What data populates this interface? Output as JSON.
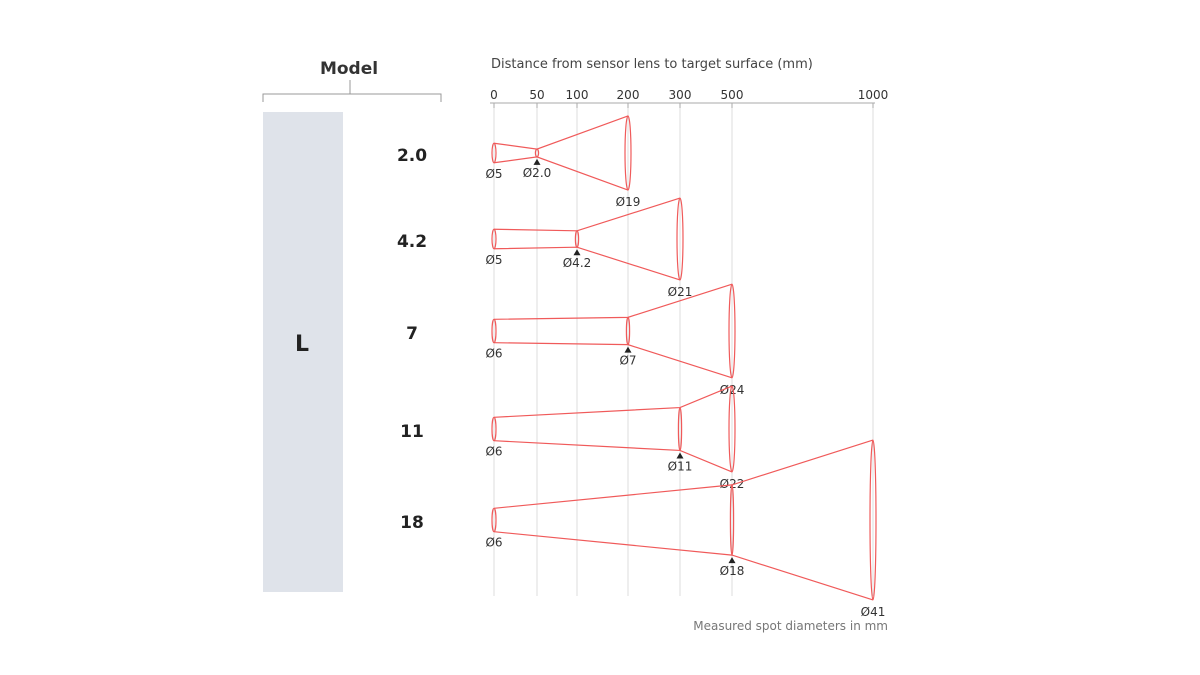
{
  "header": {
    "model_label": "Model",
    "axis_title": "Distance from sensor lens to target surface (mm)"
  },
  "footer": {
    "caption": "Measured spot diameters in mm"
  },
  "series_label": "L",
  "colors": {
    "beam": "#f05a5a",
    "grid": "#dddddd",
    "axis": "#aaaaaa",
    "text": "#333333",
    "series_bar": "#dfe3ea",
    "marker": "#222222"
  },
  "axis_ticks": [
    "0",
    "50",
    "100",
    "200",
    "300",
    "500",
    "1000"
  ],
  "axis_tick_values": [
    0,
    50,
    100,
    200,
    300,
    500,
    1000
  ],
  "chart_data": {
    "type": "diagram",
    "title": "Distance from sensor lens to target surface (mm)",
    "unit": "mm",
    "series_group": "L",
    "models": [
      {
        "name": "2.0",
        "lens_diameter": 5,
        "lens_label": "Ø5",
        "focus_distance": 50,
        "focus_diameter": 2.0,
        "focus_label": "Ø2.0",
        "end_distance": 200,
        "end_diameter": 19,
        "end_label": "Ø19"
      },
      {
        "name": "4.2",
        "lens_diameter": 5,
        "lens_label": "Ø5",
        "focus_distance": 100,
        "focus_diameter": 4.2,
        "focus_label": "Ø4.2",
        "end_distance": 300,
        "end_diameter": 21,
        "end_label": "Ø21"
      },
      {
        "name": "7",
        "lens_diameter": 6,
        "lens_label": "Ø6",
        "focus_distance": 200,
        "focus_diameter": 7,
        "focus_label": "Ø7",
        "end_distance": 500,
        "end_diameter": 24,
        "end_label": "Ø24"
      },
      {
        "name": "11",
        "lens_diameter": 6,
        "lens_label": "Ø6",
        "focus_distance": 300,
        "focus_diameter": 11,
        "focus_label": "Ø11",
        "end_distance": 500,
        "end_diameter": 22,
        "end_label": "Ø22"
      },
      {
        "name": "18",
        "lens_diameter": 6,
        "lens_label": "Ø6",
        "focus_distance": 500,
        "focus_diameter": 18,
        "focus_label": "Ø18",
        "end_distance": 1000,
        "end_diameter": 41,
        "end_label": "Ø41"
      }
    ]
  }
}
